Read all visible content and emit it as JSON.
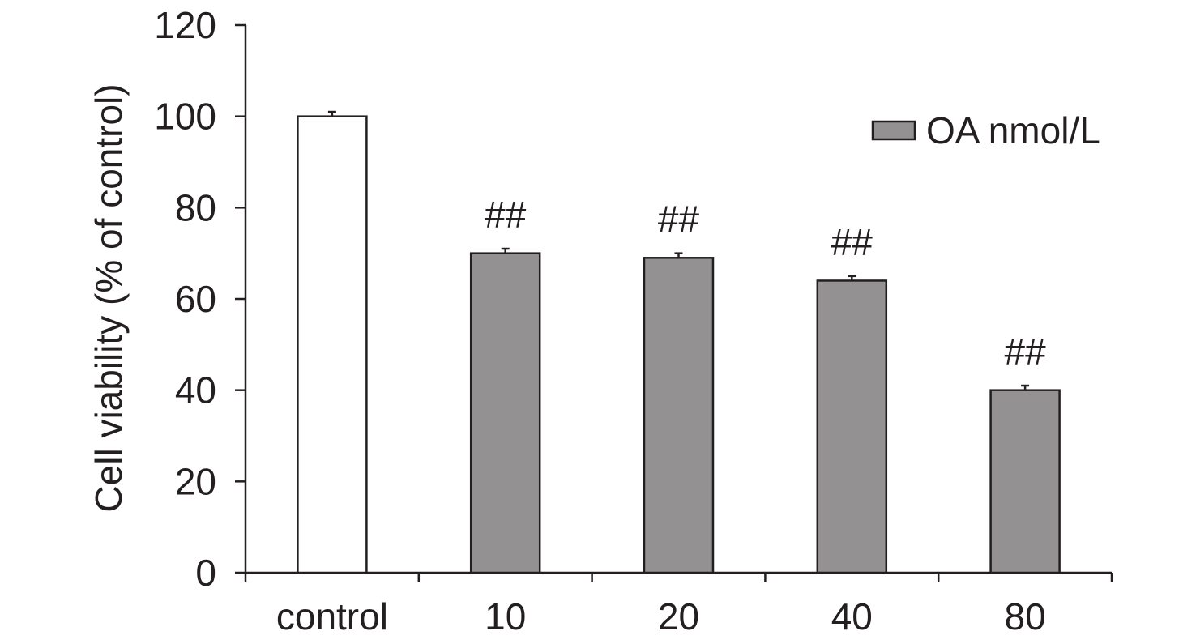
{
  "chart_data": {
    "type": "bar",
    "title": "",
    "xlabel": "",
    "ylabel": "Cell viability (% of control)",
    "categories": [
      "control",
      "10",
      "20",
      "40",
      "80"
    ],
    "values": [
      100,
      70,
      69,
      64,
      40
    ],
    "error": [
      1,
      1,
      1,
      1,
      1
    ],
    "annotations": [
      "",
      "##",
      "##",
      "##",
      "##"
    ],
    "ylim": [
      0,
      120
    ],
    "yticks": [
      0,
      20,
      40,
      60,
      80,
      100,
      120
    ],
    "grid": false,
    "legend": {
      "position": "top-right",
      "entries": [
        {
          "label": "OA nmol/L",
          "color": "#939191"
        }
      ]
    },
    "colors": {
      "control": "#ffffff",
      "treated": "#939191",
      "axis": "#231f20"
    }
  }
}
